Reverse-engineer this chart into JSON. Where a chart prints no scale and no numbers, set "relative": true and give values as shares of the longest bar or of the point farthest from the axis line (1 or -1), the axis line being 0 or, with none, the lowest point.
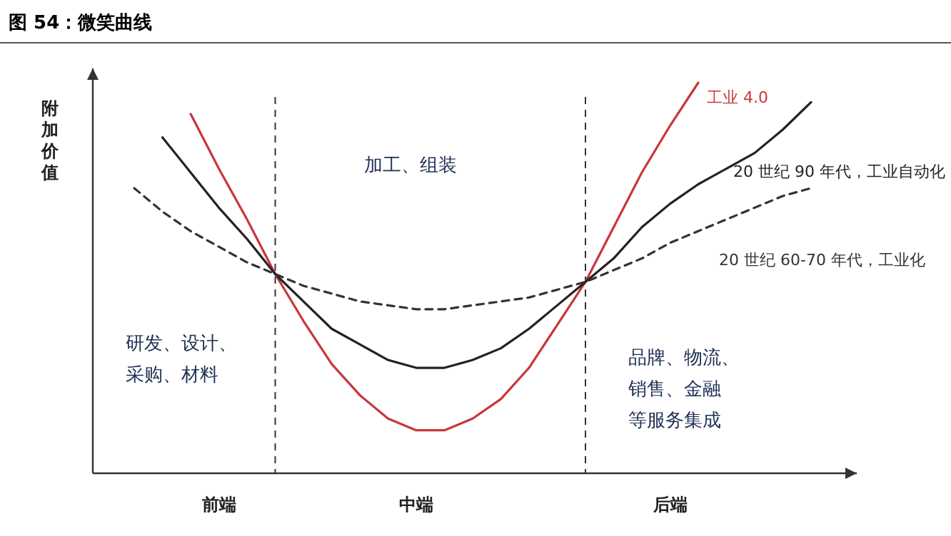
{
  "chart_data": {
    "type": "line",
    "title": "图 54：微笑曲线",
    "ylabel": "附加价值",
    "relative": true,
    "legend": false,
    "categories": [
      null,
      null,
      null,
      "前端",
      null,
      null,
      null,
      null,
      null,
      null,
      "中端",
      null,
      null,
      null,
      null,
      null,
      null,
      null,
      null,
      "后端",
      null,
      null,
      null,
      null,
      null
    ],
    "series": [
      {
        "name": "工业 4.0",
        "color": "#c9363a",
        "line_style": "solid",
        "values": [
          null,
          null,
          0.92,
          0.78,
          0.65,
          0.51,
          0.39,
          0.28,
          0.2,
          0.14,
          0.11,
          0.11,
          0.14,
          0.19,
          0.27,
          0.38,
          0.49,
          0.63,
          0.77,
          0.89,
          1,
          null,
          null,
          null,
          null
        ]
      },
      {
        "name": "20 世纪 90 年代，工业自动化",
        "color": "#222222",
        "line_style": "solid",
        "values": [
          null,
          0.86,
          0.77,
          0.68,
          0.6,
          0.51,
          0.44,
          0.37,
          0.33,
          0.29,
          0.27,
          0.27,
          0.29,
          0.32,
          0.37,
          0.43,
          0.49,
          0.55,
          0.63,
          0.69,
          0.74,
          0.78,
          0.82,
          0.88,
          0.95
        ]
      },
      {
        "name": "20 世纪 60-70 年代，工业化",
        "color": "#333333",
        "line_style": "dashed",
        "values": [
          0.73,
          0.67,
          0.62,
          0.58,
          0.54,
          0.51,
          0.48,
          0.46,
          0.44,
          0.43,
          0.42,
          0.42,
          0.43,
          0.44,
          0.45,
          0.47,
          0.49,
          0.52,
          0.55,
          0.59,
          0.62,
          0.65,
          0.68,
          0.71,
          0.73
        ]
      }
    ],
    "annotations": [
      "研发、设计、采购、材料",
      "加工、组装",
      "品牌、物流、销售、金融等服务集成"
    ]
  }
}
